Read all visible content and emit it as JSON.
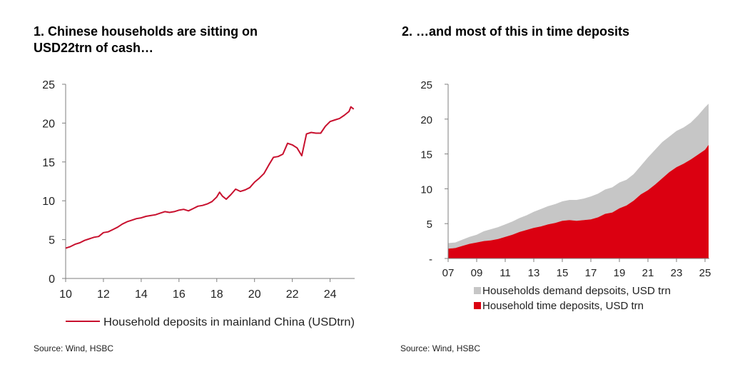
{
  "chart_data": [
    {
      "type": "line",
      "title_line1": "1. Chinese households are sitting on",
      "title_line2": "USD22trn of cash…",
      "xlabel": "",
      "ylabel": "",
      "x_ticks": [
        "10",
        "12",
        "14",
        "16",
        "18",
        "20",
        "22",
        "24"
      ],
      "y_ticks": [
        "0",
        "5",
        "10",
        "15",
        "20",
        "25"
      ],
      "xlim": [
        2010,
        2025.3
      ],
      "ylim": [
        0,
        25
      ],
      "legend_position": "bottom",
      "series": [
        {
          "name": "Household deposits in mainland China (USDtrn)",
          "color": "#c8102e",
          "x": [
            2010.0,
            2010.25,
            2010.5,
            2010.75,
            2011.0,
            2011.25,
            2011.5,
            2011.75,
            2012.0,
            2012.25,
            2012.5,
            2012.75,
            2013.0,
            2013.25,
            2013.5,
            2013.75,
            2014.0,
            2014.25,
            2014.5,
            2014.75,
            2015.0,
            2015.25,
            2015.5,
            2015.75,
            2016.0,
            2016.25,
            2016.5,
            2016.75,
            2017.0,
            2017.25,
            2017.5,
            2017.75,
            2018.0,
            2018.15,
            2018.3,
            2018.5,
            2018.75,
            2019.0,
            2019.25,
            2019.5,
            2019.75,
            2020.0,
            2020.25,
            2020.5,
            2020.75,
            2021.0,
            2021.25,
            2021.5,
            2021.75,
            2022.0,
            2022.25,
            2022.5,
            2022.75,
            2023.0,
            2023.25,
            2023.5,
            2023.75,
            2024.0,
            2024.25,
            2024.5,
            2024.75,
            2025.0,
            2025.1,
            2025.25
          ],
          "values": [
            3.9,
            4.1,
            4.4,
            4.6,
            4.9,
            5.1,
            5.3,
            5.4,
            5.9,
            6.0,
            6.3,
            6.6,
            7.0,
            7.3,
            7.5,
            7.7,
            7.8,
            8.0,
            8.1,
            8.2,
            8.4,
            8.6,
            8.5,
            8.6,
            8.8,
            8.9,
            8.7,
            9.0,
            9.3,
            9.4,
            9.6,
            9.9,
            10.5,
            11.1,
            10.6,
            10.2,
            10.8,
            11.5,
            11.2,
            11.4,
            11.7,
            12.4,
            12.9,
            13.5,
            14.6,
            15.6,
            15.7,
            16.0,
            17.4,
            17.2,
            16.8,
            15.8,
            18.6,
            18.8,
            18.7,
            18.7,
            19.6,
            20.2,
            20.4,
            20.6,
            21.0,
            21.5,
            22.1,
            21.8
          ]
        }
      ]
    },
    {
      "type": "area",
      "title": "2. …and most of this in time deposits",
      "xlabel": "",
      "ylabel": "",
      "x_ticks": [
        "07",
        "09",
        "11",
        "13",
        "15",
        "17",
        "19",
        "21",
        "23",
        "25"
      ],
      "y_ticks": [
        "-",
        "5",
        "10",
        "15",
        "20",
        "25"
      ],
      "xlim": [
        2007,
        2025.3
      ],
      "ylim": [
        0,
        25
      ],
      "stacked": true,
      "legend_position": "bottom",
      "x": [
        2007.0,
        2007.5,
        2008.0,
        2008.5,
        2009.0,
        2009.5,
        2010.0,
        2010.5,
        2011.0,
        2011.5,
        2012.0,
        2012.5,
        2013.0,
        2013.5,
        2014.0,
        2014.5,
        2015.0,
        2015.5,
        2016.0,
        2016.5,
        2017.0,
        2017.5,
        2018.0,
        2018.5,
        2019.0,
        2019.5,
        2020.0,
        2020.5,
        2021.0,
        2021.5,
        2022.0,
        2022.5,
        2023.0,
        2023.5,
        2024.0,
        2024.5,
        2025.0,
        2025.25
      ],
      "series": [
        {
          "name": "Household time deposits, USD trn",
          "color": "#db0011",
          "values": [
            1.4,
            1.5,
            1.8,
            2.1,
            2.3,
            2.5,
            2.6,
            2.8,
            3.1,
            3.4,
            3.8,
            4.1,
            4.4,
            4.6,
            4.9,
            5.1,
            5.4,
            5.5,
            5.4,
            5.5,
            5.6,
            5.9,
            6.4,
            6.6,
            7.2,
            7.6,
            8.3,
            9.2,
            9.8,
            10.6,
            11.5,
            12.4,
            13.1,
            13.6,
            14.2,
            14.9,
            15.6,
            16.3
          ]
        },
        {
          "name": "Households demand depsoits, USD trn",
          "color": "#c6c6c6",
          "values": [
            0.8,
            0.8,
            0.9,
            1.0,
            1.1,
            1.4,
            1.6,
            1.7,
            1.8,
            1.9,
            2.0,
            2.1,
            2.3,
            2.5,
            2.6,
            2.7,
            2.8,
            2.9,
            3.0,
            3.1,
            3.3,
            3.4,
            3.5,
            3.6,
            3.7,
            3.7,
            3.8,
            4.1,
            4.7,
            5.0,
            5.2,
            5.1,
            5.2,
            5.2,
            5.3,
            5.6,
            6.1,
            5.9
          ]
        }
      ]
    }
  ],
  "sources": {
    "left": "Source: Wind, HSBC",
    "right": "Source: Wind, HSBC"
  }
}
